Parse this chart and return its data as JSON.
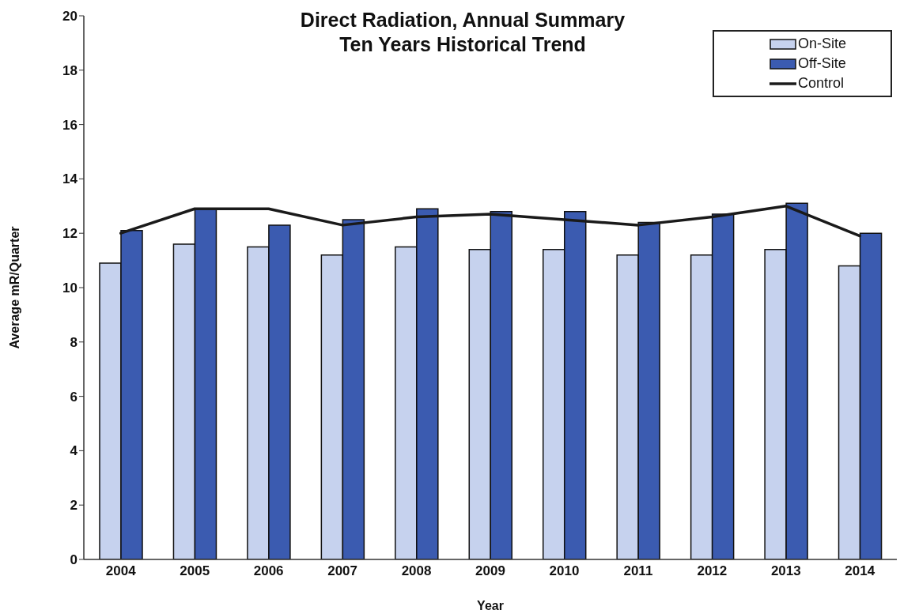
{
  "chart_data": {
    "type": "bar",
    "title": "Direct Radiation, Annual Summary",
    "subtitle": "Ten Years Historical Trend",
    "xlabel": "Year",
    "ylabel": "Average mR/Quarter",
    "categories": [
      "2004",
      "2005",
      "2006",
      "2007",
      "2008",
      "2009",
      "2010",
      "2011",
      "2012",
      "2013",
      "2014"
    ],
    "series": [
      {
        "name": "On-Site",
        "color": "#c6d2ee",
        "values": [
          10.9,
          11.6,
          11.5,
          11.2,
          11.5,
          11.4,
          11.4,
          11.2,
          11.2,
          11.4,
          10.8
        ]
      },
      {
        "name": "Off-Site",
        "color": "#3b5bb0",
        "values": [
          12.1,
          12.9,
          12.3,
          12.5,
          12.9,
          12.8,
          12.8,
          12.4,
          12.7,
          13.1,
          12.0
        ]
      },
      {
        "name": "Control",
        "type": "line",
        "color": "#1a1a1a",
        "values": [
          12.0,
          12.9,
          12.9,
          12.3,
          12.6,
          12.7,
          12.5,
          12.3,
          12.6,
          13.0,
          11.9
        ]
      }
    ],
    "ylim": [
      0,
      20
    ],
    "yticks": [
      0,
      2,
      4,
      6,
      8,
      10,
      12,
      14,
      16,
      18,
      20
    ],
    "legend": "top right"
  }
}
